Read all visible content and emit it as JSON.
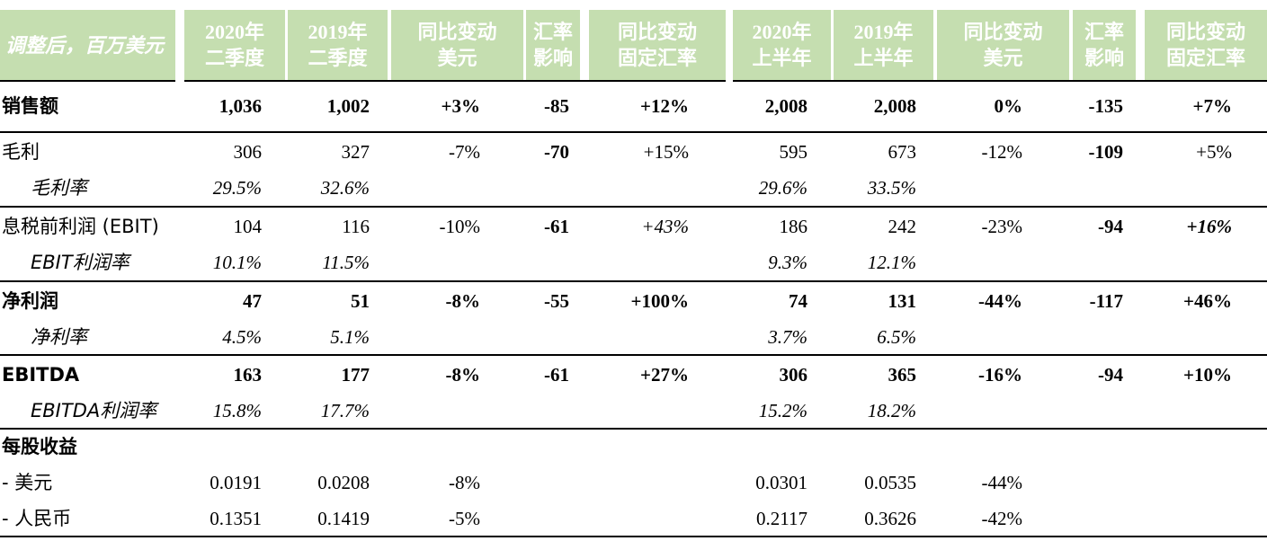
{
  "header": {
    "label": "调整后，百万美元",
    "cols": [
      {
        "l1": "2020年",
        "l2": "二季度"
      },
      {
        "l1": "2019年",
        "l2": "二季度"
      },
      {
        "l1": "同比变动",
        "l2": "美元"
      },
      {
        "l1": "汇率",
        "l2": "影响"
      },
      {
        "l1": "同比变动",
        "l2": "固定汇率"
      },
      {
        "l1": "2020年",
        "l2": "上半年"
      },
      {
        "l1": "2019年",
        "l2": "上半年"
      },
      {
        "l1": "同比变动",
        "l2": "美元"
      },
      {
        "l1": "汇率",
        "l2": "影响"
      },
      {
        "l1": "同比变动",
        "l2": "固定汇率"
      }
    ]
  },
  "rows": [
    {
      "label": "销售额",
      "bold": true,
      "values": [
        "1,036",
        "1,002",
        "+3%",
        "-85",
        "+12%",
        "2,008",
        "2,008",
        "0%",
        "-135",
        "+7%"
      ]
    },
    {
      "label": "毛利",
      "values": [
        "306",
        "327",
        "-7%",
        "-70",
        "+15%",
        "595",
        "673",
        "-12%",
        "-109",
        "+5%"
      ]
    },
    {
      "label": "毛利率",
      "italic": true,
      "values": [
        "29.5%",
        "32.6%",
        "",
        "",
        "",
        "29.6%",
        "33.5%",
        "",
        "",
        ""
      ]
    },
    {
      "label": "息税前利润 (EBIT)",
      "values": [
        "104",
        "116",
        "-10%",
        "-61",
        "+43%",
        "186",
        "242",
        "-23%",
        "-94",
        "+16%"
      ]
    },
    {
      "label": "EBIT利润率",
      "italic": true,
      "values": [
        "10.1%",
        "11.5%",
        "",
        "",
        "",
        "9.3%",
        "12.1%",
        "",
        "",
        ""
      ]
    },
    {
      "label": "净利润",
      "bold": true,
      "values": [
        "47",
        "51",
        "-8%",
        "-55",
        "+100%",
        "74",
        "131",
        "-44%",
        "-117",
        "+46%"
      ]
    },
    {
      "label": "净利率",
      "italic": true,
      "values": [
        "4.5%",
        "5.1%",
        "",
        "",
        "",
        "3.7%",
        "6.5%",
        "",
        "",
        ""
      ]
    },
    {
      "label": "EBITDA",
      "bold": true,
      "values": [
        "163",
        "177",
        "-8%",
        "-61",
        "+27%",
        "306",
        "365",
        "-16%",
        "-94",
        "+10%"
      ]
    },
    {
      "label": "EBITDA利润率",
      "italic": true,
      "values": [
        "15.8%",
        "17.7%",
        "",
        "",
        "",
        "15.2%",
        "18.2%",
        "",
        "",
        ""
      ]
    },
    {
      "label": "每股收益",
      "bold": true,
      "values": [
        "",
        "",
        "",
        "",
        "",
        "",
        "",
        "",
        "",
        ""
      ]
    },
    {
      "label": "- 美元",
      "values": [
        "0.0191",
        "0.0208",
        "-8%",
        "",
        "",
        "0.0301",
        "0.0535",
        "-44%",
        "",
        ""
      ]
    },
    {
      "label": "- 人民币",
      "values": [
        "0.1351",
        "0.1419",
        "-5%",
        "",
        "",
        "0.2117",
        "0.3626",
        "-42%",
        "",
        ""
      ]
    }
  ]
}
